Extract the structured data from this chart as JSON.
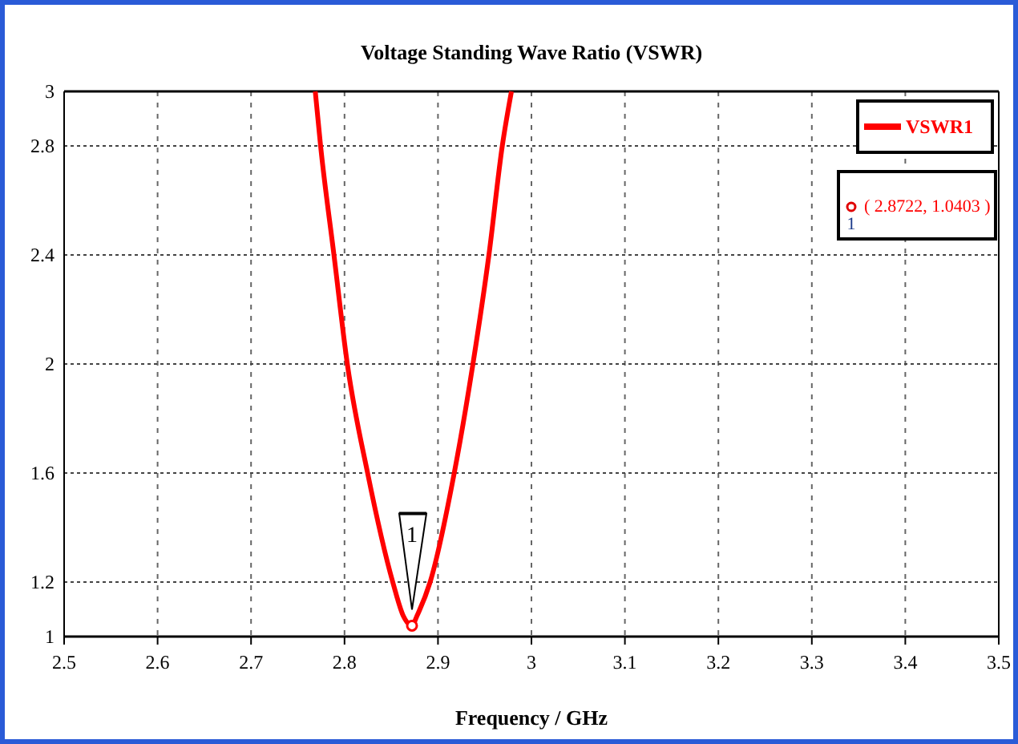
{
  "chart_data": {
    "type": "line",
    "title": "Voltage Standing Wave Ratio (VSWR)",
    "xlabel": "Frequency / GHz",
    "series": [
      {
        "name": "VSWR1",
        "color": "#ff0000",
        "x": [
          2.7687,
          2.7744,
          2.7887,
          2.803,
          2.8247,
          2.8516,
          2.863,
          2.8722,
          2.8774,
          2.8916,
          2.9174,
          2.9374,
          2.9545,
          2.9688,
          2.9786
        ],
        "values": [
          3,
          2.8,
          2.4,
          2,
          1.6,
          1.2,
          1.075,
          1.04,
          1.075,
          1.2,
          1.6,
          2,
          2.4,
          2.8,
          3
        ]
      }
    ],
    "annotations": [
      "1",
      "( 2.8722, 1.0403 )"
    ],
    "xlim": [
      2.5,
      3.5
    ],
    "xticks": [
      2.5,
      2.6,
      2.7,
      2.8,
      2.9,
      3,
      3.1,
      3.2,
      3.3,
      3.4,
      3.5
    ],
    "ylim": [
      1,
      3
    ],
    "yticks": [
      1,
      1.2,
      1.6,
      2,
      2.4,
      2.8,
      3
    ],
    "grid": true,
    "legend": "top right",
    "marker": "none",
    "line_style": "solid"
  }
}
